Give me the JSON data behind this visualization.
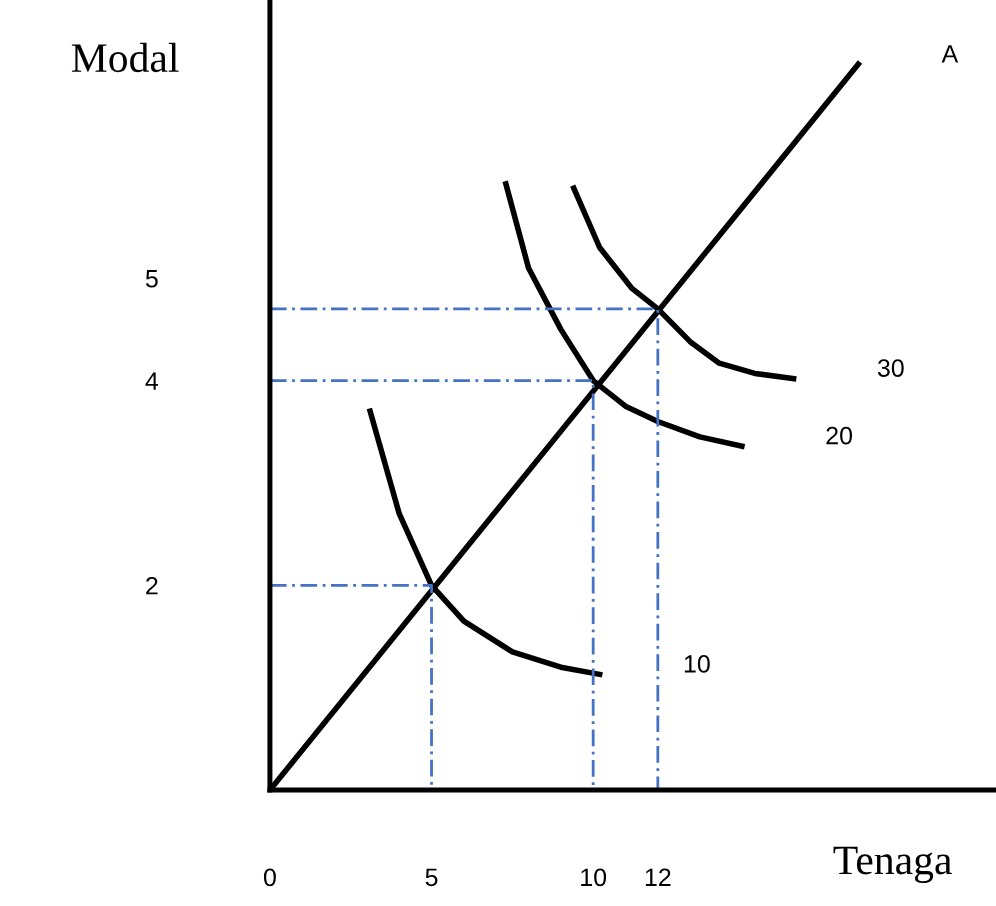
{
  "chart_data": {
    "type": "line",
    "xlabel": "Tenaga",
    "ylabel": "Modal",
    "xlim": [
      0,
      22.4
    ],
    "ylim": [
      0,
      7.7
    ],
    "xticks": [
      0,
      5,
      10,
      12
    ],
    "yticks": [
      2,
      4,
      5
    ],
    "grid": false,
    "legend": false,
    "series": [
      {
        "name": "A",
        "color": "#000000",
        "line_style": "solid",
        "x": [
          0,
          18.2
        ],
        "values": [
          0,
          7.09
        ]
      },
      {
        "name": "10",
        "color": "#000000",
        "line_style": "solid",
        "x": [
          3.1,
          4,
          5,
          6,
          7.5,
          9,
          10.2
        ],
        "values": [
          3.7,
          2.7,
          2,
          1.65,
          1.35,
          1.2,
          1.13
        ]
      },
      {
        "name": "20",
        "color": "#000000",
        "line_style": "solid",
        "x": [
          7.3,
          8,
          9,
          10,
          11,
          12,
          13.3,
          14.6
        ],
        "values": [
          5.92,
          5.1,
          4.5,
          4,
          3.75,
          3.6,
          3.45,
          3.36
        ]
      },
      {
        "name": "30",
        "color": "#000000",
        "line_style": "solid",
        "x": [
          9.4,
          10.2,
          11.2,
          12,
          13,
          13.9,
          15,
          16.2
        ],
        "values": [
          5.88,
          5.3,
          4.9,
          4.7,
          4.38,
          4.17,
          4.07,
          4.02
        ]
      },
      {
        "color": "#4472c4",
        "line_style": "dashed",
        "x": [
          0,
          5,
          5
        ],
        "values": [
          2,
          2,
          0
        ]
      },
      {
        "color": "#4472c4",
        "line_style": "dashed",
        "x": [
          0,
          10,
          10
        ],
        "values": [
          4,
          4,
          0
        ]
      },
      {
        "color": "#4472c4",
        "line_style": "dashed",
        "x": [
          0,
          12,
          12
        ],
        "values": [
          4.7,
          4.7,
          0
        ]
      }
    ]
  }
}
